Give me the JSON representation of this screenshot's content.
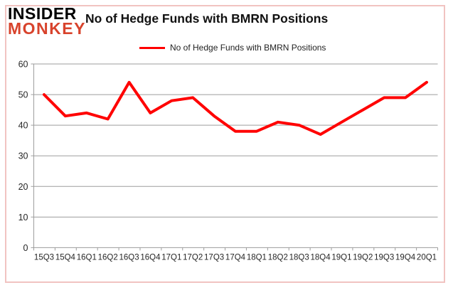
{
  "logo": {
    "line1": "INSIDER",
    "line2": "MONKEY"
  },
  "header": {
    "title": "No of Hedge Funds with BMRN Positions"
  },
  "legend": {
    "label": "No of Hedge Funds with BMRN Positions",
    "color": "#ff0000"
  },
  "colors": {
    "series_red": "#ff0000",
    "logo_red": "#d8432c",
    "frame_pink": "#f1c3c1",
    "gridline_gray": "#9d9d9d",
    "axis_text": "#262626"
  },
  "chart_data": {
    "type": "line",
    "title": "No of Hedge Funds with BMRN Positions",
    "categories": [
      "15Q3",
      "15Q4",
      "16Q1",
      "16Q2",
      "16Q3",
      "16Q4",
      "17Q1",
      "17Q2",
      "17Q3",
      "17Q4",
      "18Q1",
      "18Q2",
      "18Q3",
      "18Q4",
      "19Q1",
      "19Q2",
      "19Q3",
      "19Q4",
      "20Q1"
    ],
    "values": [
      50,
      43,
      44,
      42,
      54,
      44,
      48,
      49,
      43,
      38,
      38,
      41,
      40,
      37,
      41,
      45,
      49,
      49,
      54
    ],
    "xlabel": "",
    "ylabel": "",
    "ylim": [
      0,
      60
    ],
    "yticks": [
      0,
      10,
      20,
      30,
      40,
      50,
      60
    ],
    "grid": "horizontal",
    "legend_position": "top-center",
    "line_color": "#ff0000",
    "line_width": 4
  }
}
